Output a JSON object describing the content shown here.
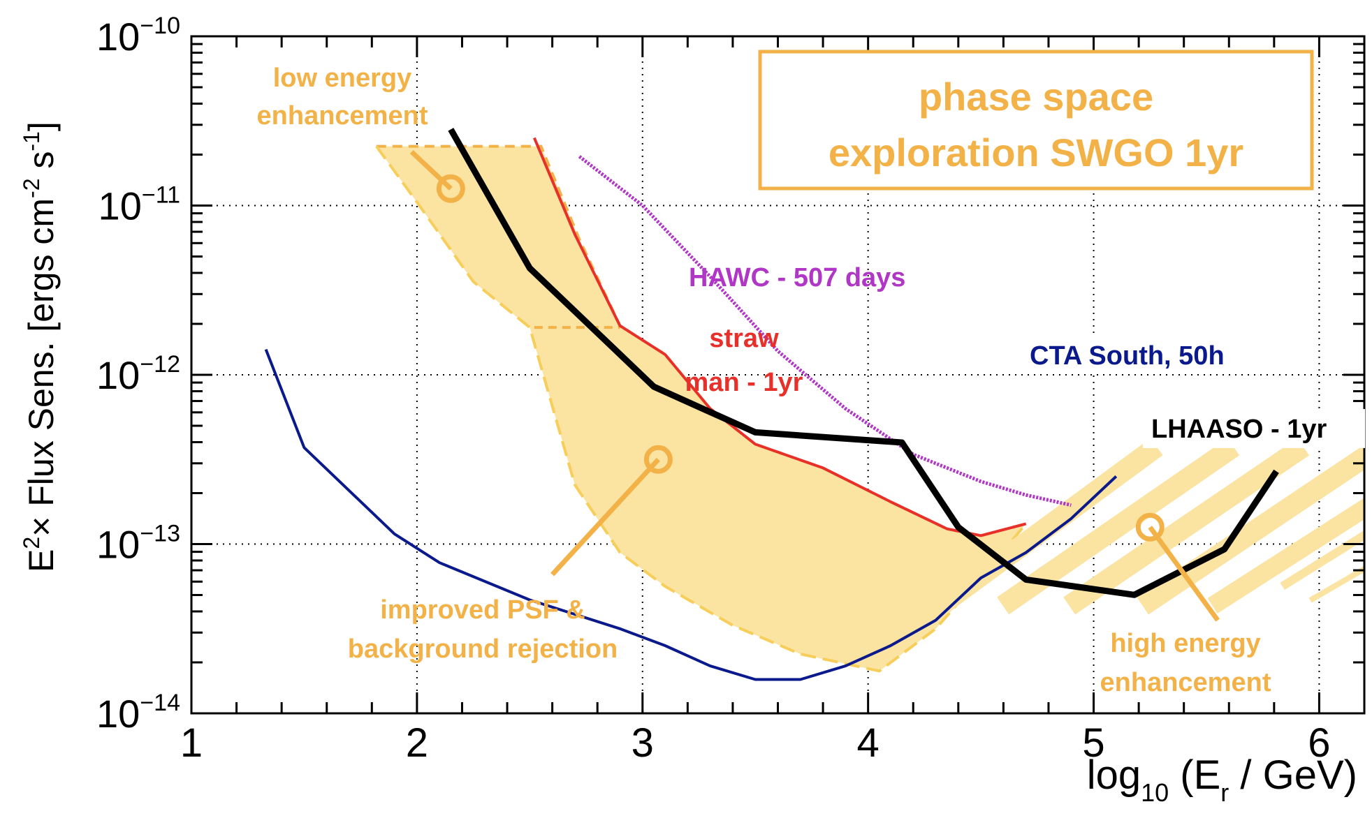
{
  "chart_data": {
    "type": "line",
    "title": "phase space exploration SWGO 1yr",
    "title_lines": [
      "phase space",
      "exploration SWGO 1yr"
    ],
    "xlabel": {
      "pre": "log",
      "sub": "10",
      "mid": " (E",
      "sub2": "r",
      "post": " / GeV)"
    },
    "ylabel": {
      "pre": "E",
      "sup": "2",
      "mid": "× Flux Sens. [ergs cm",
      "sup2": "-2",
      "mid2": " s",
      "sup3": "-1",
      "post": "]"
    },
    "xlim": [
      1,
      6.2
    ],
    "ylim_log10": [
      -14,
      -10
    ],
    "grid": true,
    "x_ticks": [
      {
        "value": 1,
        "label": "1"
      },
      {
        "value": 2,
        "label": "2"
      },
      {
        "value": 3,
        "label": "3"
      },
      {
        "value": 4,
        "label": "4"
      },
      {
        "value": 5,
        "label": "5"
      },
      {
        "value": 6,
        "label": "6"
      }
    ],
    "y_ticks": [
      {
        "exp": -14,
        "base": "10",
        "sup": "−14"
      },
      {
        "exp": -13,
        "base": "10",
        "sup": "−13"
      },
      {
        "exp": -12,
        "base": "10",
        "sup": "−12"
      },
      {
        "exp": -11,
        "base": "10",
        "sup": "−11"
      },
      {
        "exp": -10,
        "base": "10",
        "sup": "−10"
      }
    ],
    "colors": {
      "cta": "#0a1a8c",
      "hawc": "#b036c6",
      "strawman": "#e8302a",
      "lhaaso": "#000000",
      "swgo_fill": "#fbe3a2",
      "swgo_edge": "#f2b247",
      "swgo_edge2": "#f7ce5a",
      "annot": "#f2b247"
    },
    "series": [
      {
        "name": "CTA South, 50h",
        "label": "CTA South, 50h",
        "x": [
          1.33,
          1.5,
          1.9,
          2.1,
          2.5,
          2.9,
          3.1,
          3.3,
          3.5,
          3.7,
          3.9,
          4.1,
          4.3,
          4.5,
          4.7,
          4.9,
          5.1
        ],
        "log10y": [
          -11.85,
          -12.43,
          -12.94,
          -13.11,
          -13.33,
          -13.5,
          -13.6,
          -13.72,
          -13.8,
          -13.8,
          -13.72,
          -13.6,
          -13.45,
          -13.2,
          -13.05,
          -12.85,
          -12.6
        ]
      },
      {
        "name": "HAWC - 507 days",
        "label": "HAWC - 507 days",
        "x": [
          2.72,
          3.0,
          3.3,
          3.6,
          3.9,
          4.2,
          4.5,
          4.7,
          4.9
        ],
        "log10y": [
          -10.71,
          -11.0,
          -11.42,
          -11.86,
          -12.2,
          -12.47,
          -12.63,
          -12.71,
          -12.77
        ]
      },
      {
        "name": "straw man - 1yr",
        "label_lines": [
          "straw",
          "man - 1yr"
        ],
        "x": [
          2.52,
          2.7,
          2.9,
          3.1,
          3.3,
          3.5,
          3.8,
          4.1,
          4.35,
          4.5,
          4.7
        ],
        "log10y": [
          -10.6,
          -11.17,
          -11.71,
          -11.88,
          -12.2,
          -12.41,
          -12.55,
          -12.75,
          -12.91,
          -12.95,
          -12.88
        ]
      },
      {
        "name": "LHAASO - 1yr",
        "label": "LHAASO - 1yr",
        "x": [
          2.15,
          2.5,
          3.05,
          3.5,
          4.15,
          4.4,
          4.7,
          5.18,
          5.58,
          5.81
        ],
        "log10y": [
          -10.55,
          -11.37,
          -12.07,
          -12.34,
          -12.4,
          -12.9,
          -13.21,
          -13.3,
          -13.03,
          -12.57
        ]
      },
      {
        "name": "SWGO 1yr phase space",
        "type": "area",
        "upper_x": [
          1.82,
          2.55,
          2.72,
          2.9,
          3.1,
          3.3,
          3.5,
          3.8,
          4.1,
          4.35,
          4.5,
          4.7
        ],
        "upper_log10y": [
          -10.65,
          -10.65,
          -11.2,
          -11.71,
          -11.88,
          -12.2,
          -12.41,
          -12.55,
          -12.75,
          -12.91,
          -12.95,
          -12.88
        ],
        "lower_x": [
          1.82,
          2.0,
          2.25,
          2.5,
          2.7,
          2.9,
          3.1,
          3.4,
          3.7,
          4.05,
          4.3,
          4.55,
          4.7
        ],
        "lower_log10y": [
          -10.65,
          -10.98,
          -11.45,
          -11.72,
          -12.65,
          -13.05,
          -13.25,
          -13.48,
          -13.65,
          -13.75,
          -13.5,
          -13.12,
          -12.88
        ],
        "mid_line_x": [
          2.52,
          2.9
        ],
        "mid_line_log10y": [
          -11.72,
          -11.72
        ]
      }
    ],
    "hatch": {
      "x_start": 4.35,
      "x_end": 6.2
    },
    "annotations": [
      {
        "id": "low",
        "text_lines": [
          "low energy",
          "enhancement"
        ],
        "x": 2.15,
        "log10y": -10.9
      },
      {
        "id": "psf",
        "text_lines": [
          "improved PSF &",
          "background rejection"
        ],
        "x": 3.07,
        "log10y": -12.5
      },
      {
        "id": "high",
        "text_lines": [
          "high energy",
          "enhancement"
        ],
        "x": 5.25,
        "log10y": -12.9
      }
    ]
  }
}
